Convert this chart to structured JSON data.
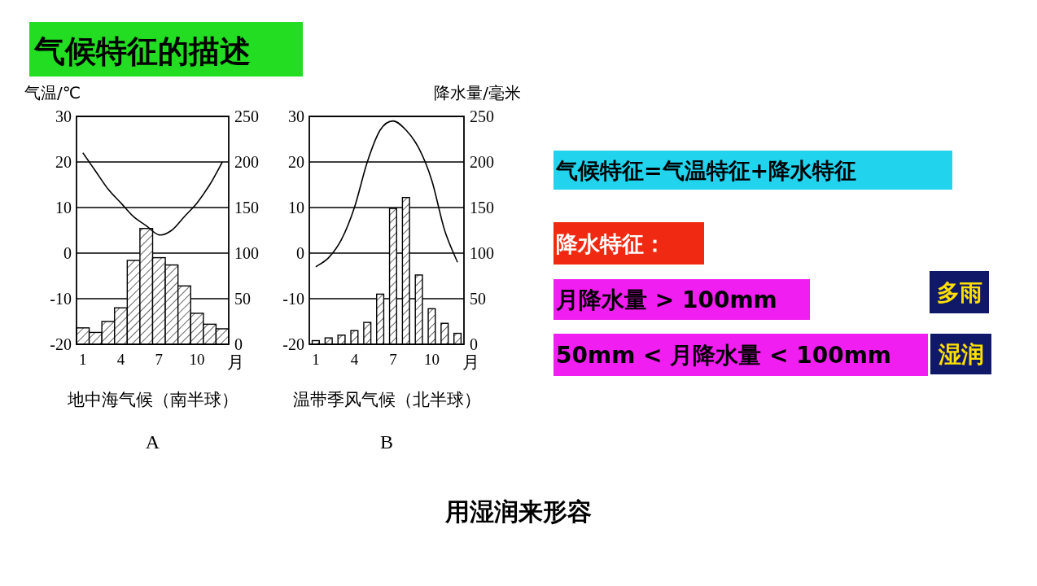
{
  "chart_data": [
    {
      "type": "bar",
      "title": "地中海气候（南半球）",
      "subtitle": "A",
      "ylabel": "气温/℃",
      "xlabel": "月",
      "categories": [
        "1",
        null,
        null,
        "4",
        null,
        null,
        "7",
        null,
        null,
        "10",
        null,
        null
      ],
      "ylim": [
        -20,
        30
      ],
      "yticks": [
        -20,
        -10,
        0,
        10,
        20,
        30
      ],
      "y2lim": [
        0,
        250
      ],
      "y2ticks": [
        0,
        50,
        100,
        150,
        200,
        250
      ],
      "grid": "y",
      "series": [
        {
          "type": "bar",
          "axis": "y2",
          "color": "#000000",
          "values": [
            18,
            13,
            25,
            40,
            92,
            127,
            95,
            87,
            64,
            34,
            22,
            17
          ]
        },
        {
          "type": "line",
          "axis": "y",
          "color": "#000000",
          "values": [
            22,
            18,
            14,
            11,
            8,
            6,
            4,
            5,
            8,
            11,
            15,
            20
          ]
        }
      ]
    },
    {
      "type": "bar",
      "title": "温带季风气候（北半球）",
      "subtitle": "B",
      "y2label": "降水量/毫米",
      "xlabel": "月",
      "categories": [
        "1",
        null,
        null,
        "4",
        null,
        null,
        "7",
        null,
        null,
        "10",
        null,
        null
      ],
      "ylim": [
        -20,
        30
      ],
      "yticks": [
        -20,
        -10,
        0,
        10,
        20,
        30
      ],
      "y2lim": [
        0,
        250
      ],
      "y2ticks": [
        0,
        50,
        100,
        150,
        200,
        250
      ],
      "grid": "y",
      "series": [
        {
          "type": "bar",
          "axis": "y2",
          "color": "#000000",
          "values": [
            4,
            7,
            10,
            15,
            24,
            55,
            149,
            161,
            76,
            39,
            23,
            12
          ]
        },
        {
          "type": "line",
          "axis": "y",
          "color": "#000000",
          "values": [
            -3,
            -1,
            3,
            10,
            20,
            27,
            29,
            27,
            23,
            16,
            5,
            -2
          ]
        }
      ]
    },
    {
      "type": "other",
      "title": "气候特征的描述",
      "annotations": [
        "气候特征=气温特征+降水特征",
        "降水特征：",
        "月降水量 > 100mm",
        "多雨",
        "50mm < 月降水量 < 100mm",
        "湿润",
        "用湿润来形容"
      ]
    }
  ]
}
